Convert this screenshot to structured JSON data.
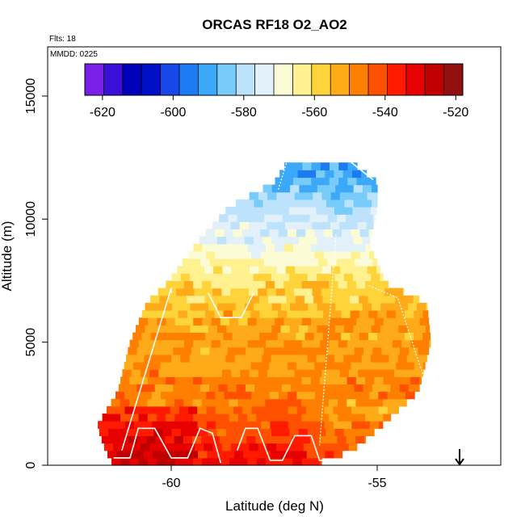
{
  "chart_data": {
    "type": "heatmap",
    "title": "ORCAS RF18 O2_AO2",
    "flights_note": "Flts: 18",
    "date_note": "MMDD: 0225",
    "xlabel": "Latitude (deg N)",
    "ylabel": "Altitude (m)",
    "xlim": [
      -63,
      -52
    ],
    "ylim": [
      0,
      17000
    ],
    "xticks": [
      -60,
      -55
    ],
    "xtick_labels": [
      "-60",
      "-55"
    ],
    "yticks": [
      0,
      5000,
      10000,
      15000
    ],
    "ytick_labels": [
      "0",
      "5000",
      "10000",
      "15000"
    ],
    "colorbar": {
      "range": [
        -625,
        -518
      ],
      "ticks": [
        -620,
        -600,
        -580,
        -560,
        -540,
        -520
      ],
      "tick_labels": [
        "-620",
        "-600",
        "-580",
        "-560",
        "-540",
        "-520"
      ],
      "colors": [
        "#7a1fe8",
        "#3a10d8",
        "#0000b8",
        "#0010c8",
        "#1848e8",
        "#1c7af2",
        "#3ca8f8",
        "#78ccfa",
        "#bce2fc",
        "#e2f0fa",
        "#fbfbd6",
        "#fff090",
        "#ffd43a",
        "#ffaa18",
        "#ff8000",
        "#ff5000",
        "#ff1a00",
        "#e60000",
        "#c00000",
        "#901010"
      ]
    },
    "field_summary": [
      {
        "altitude_m": 500,
        "value": -536
      },
      {
        "altitude_m": 2000,
        "value": -545
      },
      {
        "altitude_m": 4000,
        "value": -550
      },
      {
        "altitude_m": 6000,
        "value": -553
      },
      {
        "altitude_m": 7500,
        "value": -560
      },
      {
        "altitude_m": 9000,
        "value": -572
      },
      {
        "altitude_m": 10500,
        "value": -580
      },
      {
        "altitude_m": 12000,
        "value": -592
      }
    ],
    "marker": {
      "type": "down-arrow",
      "latitude": -53
    }
  }
}
